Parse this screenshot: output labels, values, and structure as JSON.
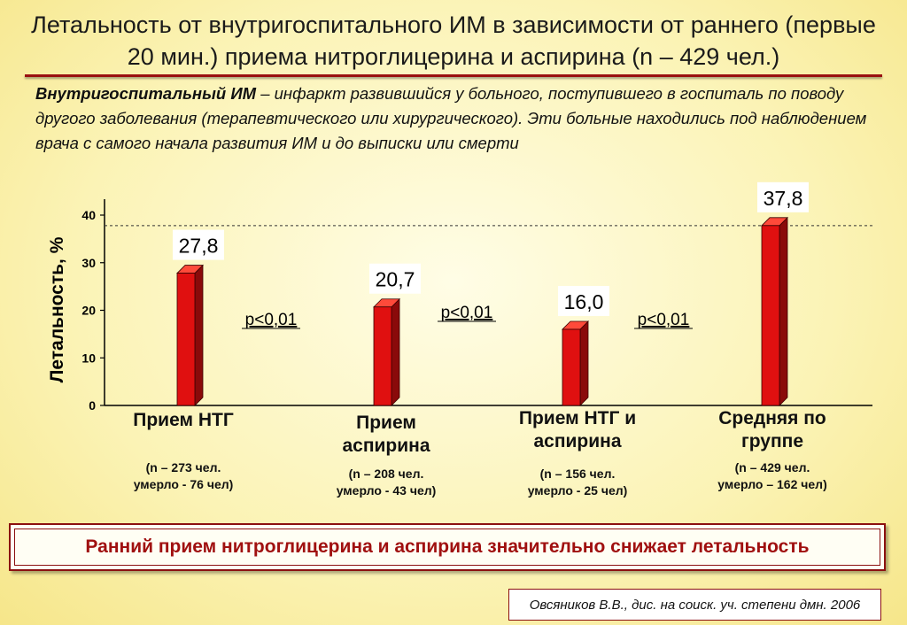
{
  "title": "Летальность от внутригоспитального ИМ в зависимости от раннего (первые 20 мин.) приема нитроглицерина и аспирина (n – 429 чел.)",
  "definition": {
    "term": "Внутригоспитальный ИМ",
    "text": " – инфаркт развившийся у больного, поступившего в госпиталь по поводу другого заболевания (терапевтического или хирургического). Эти больные находились под наблюдением врача с самого начала развития ИМ и до выписки или смерти"
  },
  "chart_data": {
    "type": "bar",
    "ylabel": "Летальность, %",
    "ylim": [
      0,
      40
    ],
    "yticks": [
      "0",
      "10",
      "20",
      "30",
      "40"
    ],
    "categories": [
      "Прием НТГ",
      "Прием аспирина",
      "Прием НТГ и аспирина",
      "Средняя по группе"
    ],
    "values": [
      27.8,
      20.7,
      16.0,
      37.8
    ],
    "value_labels": [
      "27,8",
      "20,7",
      "16,0",
      "37,8"
    ],
    "category_notes": [
      [
        "(n – 273 чел.",
        "умерло - 76 чел)"
      ],
      [
        "(n – 208 чел.",
        "умерло - 43 чел)"
      ],
      [
        "(n – 156 чел.",
        "умерло - 25 чел)"
      ],
      [
        "(n – 429 чел.",
        "умерло – 162 чел)"
      ]
    ],
    "p_values": [
      "p<0,01",
      "p<0,01",
      "p<0,01"
    ],
    "reference_line": 37.8,
    "bar_color": "#e01010",
    "grid": false
  },
  "conclusion": "Ранний прием нитроглицерина и аспирина значительно снижает летальность",
  "source": "Овсяников В.В., дис. на соиск. уч. степени дмн. 2006"
}
